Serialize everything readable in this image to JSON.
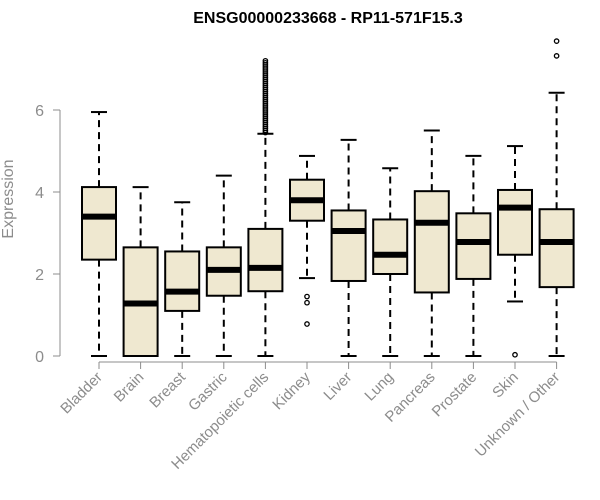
{
  "chart_data": {
    "type": "boxplot",
    "title": "ENSG00000233668 - RP11-571F15.3",
    "xlabel": "",
    "ylabel": "Expression",
    "ylim": [
      0,
      7.8
    ],
    "yticks": [
      0,
      2,
      4,
      6
    ],
    "ytick_labels": [
      "0",
      "2",
      "4",
      "6"
    ],
    "grid": false,
    "box_color": "#efe8d0",
    "edge_color": "#000000",
    "axis_color": "#8c8c8c",
    "categories": [
      "Bladder",
      "Brain",
      "Breast",
      "Gastric",
      "Hematopoietic cells",
      "Kidney",
      "Liver",
      "Lung",
      "Pancreas",
      "Prostate",
      "Skin",
      "Unknown / Other"
    ],
    "series": [
      {
        "name": "Bladder",
        "whisker_low": 0,
        "q1": 2.35,
        "median": 3.4,
        "q3": 4.12,
        "whisker_high": 5.95,
        "outliers": []
      },
      {
        "name": "Brain",
        "whisker_low": 0,
        "q1": 0,
        "median": 1.28,
        "q3": 2.65,
        "whisker_high": 4.12,
        "outliers": []
      },
      {
        "name": "Breast",
        "whisker_low": 0,
        "q1": 1.1,
        "median": 1.57,
        "q3": 2.55,
        "whisker_high": 3.75,
        "outliers": []
      },
      {
        "name": "Gastric",
        "whisker_low": 0,
        "q1": 1.47,
        "median": 2.1,
        "q3": 2.65,
        "whisker_high": 4.4,
        "outliers": []
      },
      {
        "name": "Hematopoietic cells",
        "whisker_low": 0,
        "q1": 1.58,
        "median": 2.15,
        "q3": 3.1,
        "whisker_high": 5.42,
        "outliers": [
          5.45,
          5.5,
          5.55,
          5.6,
          5.65,
          5.7,
          5.75,
          5.8,
          5.85,
          5.9,
          5.95,
          6.0,
          6.05,
          6.1,
          6.15,
          6.2,
          6.25,
          6.3,
          6.35,
          6.4,
          6.45,
          6.5,
          6.55,
          6.6,
          6.65,
          6.7,
          6.75,
          6.8,
          6.85,
          6.9,
          6.95,
          7.0,
          7.05,
          7.1,
          7.15,
          7.2
        ]
      },
      {
        "name": "Kidney",
        "whisker_low": 1.9,
        "q1": 3.3,
        "median": 3.8,
        "q3": 4.3,
        "whisker_high": 4.88,
        "outliers": [
          1.45,
          1.3,
          0.78
        ]
      },
      {
        "name": "Liver",
        "whisker_low": 0,
        "q1": 1.83,
        "median": 3.05,
        "q3": 3.55,
        "whisker_high": 5.27,
        "outliers": []
      },
      {
        "name": "Lung",
        "whisker_low": 0,
        "q1": 2.0,
        "median": 2.47,
        "q3": 3.33,
        "whisker_high": 4.58,
        "outliers": []
      },
      {
        "name": "Pancreas",
        "whisker_low": 0,
        "q1": 1.55,
        "median": 3.25,
        "q3": 4.02,
        "whisker_high": 5.5,
        "outliers": []
      },
      {
        "name": "Prostate",
        "whisker_low": 0,
        "q1": 1.88,
        "median": 2.78,
        "q3": 3.48,
        "whisker_high": 4.88,
        "outliers": []
      },
      {
        "name": "Skin",
        "whisker_low": 1.33,
        "q1": 2.47,
        "median": 3.62,
        "q3": 4.05,
        "whisker_high": 5.12,
        "outliers": [
          0.03
        ]
      },
      {
        "name": "Unknown / Other",
        "whisker_low": 0,
        "q1": 1.68,
        "median": 2.78,
        "q3": 3.58,
        "whisker_high": 6.42,
        "outliers": [
          7.32,
          7.68
        ]
      }
    ]
  }
}
